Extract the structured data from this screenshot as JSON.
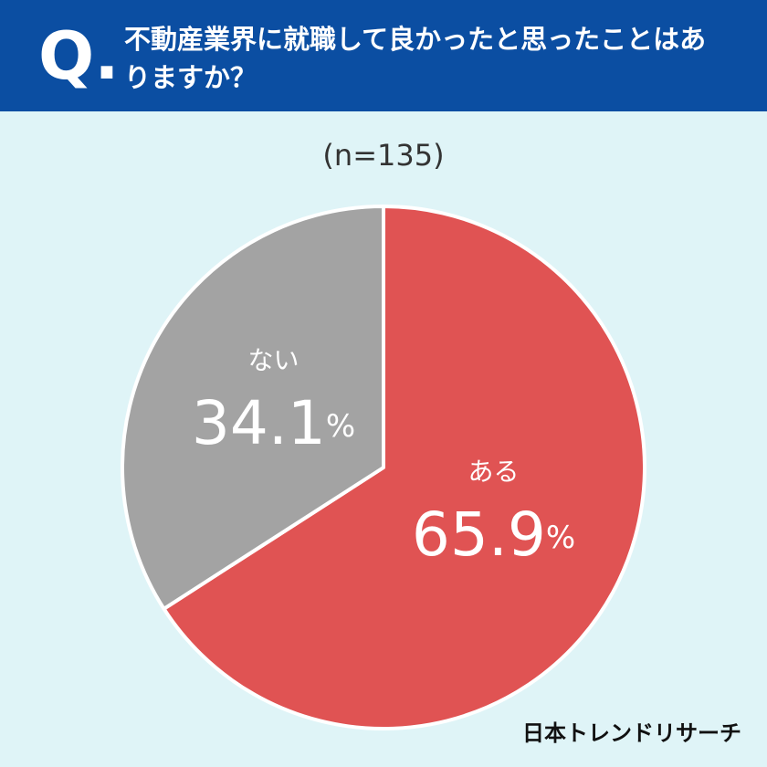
{
  "header": {
    "mark": "Q."
  },
  "chart_data": {
    "type": "pie",
    "title": "不動産業界に就職して良かったと思ったことはありますか？",
    "subtitle": "(n=135)",
    "categories": [
      "ある",
      "ない"
    ],
    "values": [
      65.9,
      34.1
    ],
    "value_labels": [
      "65.9%",
      "34.1%"
    ],
    "colors": [
      "#e05353",
      "#a3a3a3"
    ]
  },
  "footer": {
    "brand": "日本トレンドリサーチ"
  }
}
